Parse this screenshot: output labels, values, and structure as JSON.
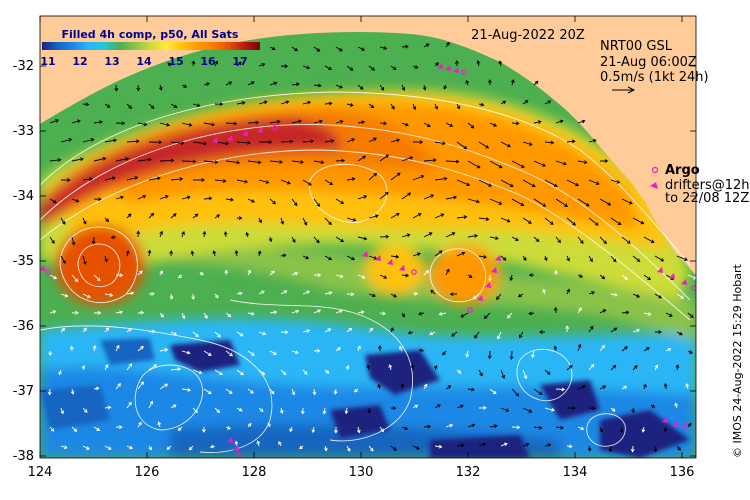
{
  "map": {
    "title_date": "21-Aug-2022 20Z",
    "colorbar": {
      "title": "Filled 4h comp, p50, All Sats",
      "ticks": [
        "11",
        "12",
        "13",
        "14",
        "15",
        "16",
        "17"
      ],
      "colors": [
        "#1a237e",
        "#1565c0",
        "#1e88e5",
        "#29b6f6",
        "#26c6da",
        "#4caf50",
        "#8bc34a",
        "#cddc39",
        "#ffeb3b",
        "#ffc107",
        "#ff9800",
        "#f57c00",
        "#e65100",
        "#b71c1c",
        "#7f0000"
      ]
    },
    "current_legend": {
      "line1": "NRT00 GSL",
      "line2": "21-Aug 06:00Z",
      "line3": "0.5m/s (1kt 24h)"
    },
    "drifter_legend": {
      "argo": "Argo",
      "drifters": "drifters@12h",
      "to_date": "to 22/08 12Z",
      "argo_color": "#e91ec8"
    },
    "credit": "© IMOS 24-Aug-2022 15:29 Hobart",
    "x_ticks": [
      "124",
      "126",
      "128",
      "130",
      "132",
      "134",
      "136"
    ],
    "y_ticks": [
      "-32",
      "-33",
      "-34",
      "-35",
      "-36",
      "-37",
      "-38"
    ],
    "land_color": "#ffcc99"
  }
}
